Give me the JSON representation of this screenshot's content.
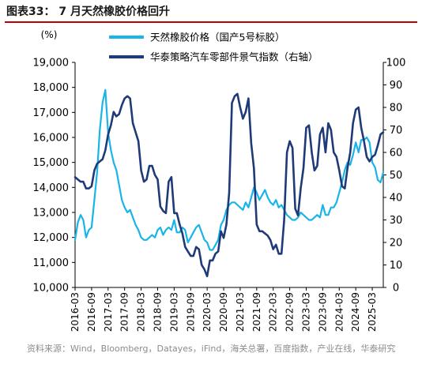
{
  "figure": {
    "title": "图表33： 7 月天然橡胶价格回升",
    "source": "资料来源：Wind，Bloomberg，Datayes，iFind，海关总署，百度指数，产业在线，华泰研究"
  },
  "chart_data": {
    "type": "line",
    "ylabel": "(%)",
    "y_left": {
      "min": 10000,
      "max": 19000,
      "ticks": [
        "10,000",
        "11,000",
        "12,000",
        "13,000",
        "14,000",
        "15,000",
        "16,000",
        "17,000",
        "18,000",
        "19,000"
      ]
    },
    "y_right": {
      "min": 0,
      "max": 100,
      "ticks": [
        "0",
        "10",
        "20",
        "30",
        "40",
        "50",
        "60",
        "70",
        "80",
        "90",
        "100"
      ]
    },
    "x_ticks": [
      "2016-03",
      "2016-09",
      "2017-03",
      "2017-09",
      "2018-03",
      "2018-09",
      "2019-03",
      "2019-09",
      "2020-03",
      "2020-09",
      "2021-03",
      "2021-09",
      "2022-03",
      "2022-09",
      "2023-03",
      "2023-09",
      "2024-03",
      "2024-09",
      "2025-03"
    ],
    "x_start": "2016-03",
    "x_end": "2025-07",
    "grid": false,
    "legend": "top",
    "series": [
      {
        "name": "天然橡胶价格（国产5号标胶）",
        "axis": "left",
        "color": "#19b4e8",
        "points": [
          [
            "2016-03",
            11900
          ],
          [
            "2016-04",
            12600
          ],
          [
            "2016-05",
            12900
          ],
          [
            "2016-06",
            12700
          ],
          [
            "2016-07",
            12000
          ],
          [
            "2016-08",
            12300
          ],
          [
            "2016-09",
            12400
          ],
          [
            "2016-10",
            13500
          ],
          [
            "2016-11",
            14600
          ],
          [
            "2016-12",
            16300
          ],
          [
            "2017-01",
            17400
          ],
          [
            "2017-02",
            17900
          ],
          [
            "2017-03",
            16200
          ],
          [
            "2017-04",
            15500
          ],
          [
            "2017-05",
            15000
          ],
          [
            "2017-06",
            14700
          ],
          [
            "2017-07",
            14100
          ],
          [
            "2017-08",
            13500
          ],
          [
            "2017-09",
            13200
          ],
          [
            "2017-10",
            13000
          ],
          [
            "2017-11",
            13100
          ],
          [
            "2017-12",
            12800
          ],
          [
            "2018-01",
            12500
          ],
          [
            "2018-02",
            12300
          ],
          [
            "2018-03",
            12000
          ],
          [
            "2018-04",
            11900
          ],
          [
            "2018-05",
            11900
          ],
          [
            "2018-06",
            12000
          ],
          [
            "2018-07",
            12100
          ],
          [
            "2018-08",
            12000
          ],
          [
            "2018-09",
            12300
          ],
          [
            "2018-10",
            12400
          ],
          [
            "2018-11",
            12100
          ],
          [
            "2018-12",
            12300
          ],
          [
            "2019-01",
            12400
          ],
          [
            "2019-02",
            12300
          ],
          [
            "2019-03",
            12700
          ],
          [
            "2019-04",
            12200
          ],
          [
            "2019-05",
            12200
          ],
          [
            "2019-06",
            12400
          ],
          [
            "2019-07",
            12300
          ],
          [
            "2019-08",
            11800
          ],
          [
            "2019-09",
            12000
          ],
          [
            "2019-10",
            12200
          ],
          [
            "2019-11",
            12400
          ],
          [
            "2019-12",
            12500
          ],
          [
            "2020-01",
            12200
          ],
          [
            "2020-02",
            11900
          ],
          [
            "2020-03",
            11800
          ],
          [
            "2020-04",
            11500
          ],
          [
            "2020-05",
            11500
          ],
          [
            "2020-06",
            11700
          ],
          [
            "2020-07",
            11900
          ],
          [
            "2020-08",
            12500
          ],
          [
            "2020-09",
            12700
          ],
          [
            "2020-10",
            13100
          ],
          [
            "2020-11",
            13300
          ],
          [
            "2020-12",
            13400
          ],
          [
            "2021-01",
            13400
          ],
          [
            "2021-02",
            13300
          ],
          [
            "2021-03",
            13200
          ],
          [
            "2021-04",
            13100
          ],
          [
            "2021-05",
            13400
          ],
          [
            "2021-06",
            13200
          ],
          [
            "2021-07",
            13600
          ],
          [
            "2021-08",
            14000
          ],
          [
            "2021-09",
            13800
          ],
          [
            "2021-10",
            13500
          ],
          [
            "2021-11",
            13700
          ],
          [
            "2021-12",
            13900
          ],
          [
            "2022-01",
            13600
          ],
          [
            "2022-02",
            13400
          ],
          [
            "2022-03",
            13300
          ],
          [
            "2022-04",
            13500
          ],
          [
            "2022-05",
            13200
          ],
          [
            "2022-06",
            13300
          ],
          [
            "2022-07",
            13100
          ],
          [
            "2022-08",
            12900
          ],
          [
            "2022-09",
            12800
          ],
          [
            "2022-10",
            12700
          ],
          [
            "2022-11",
            12700
          ],
          [
            "2022-12",
            12800
          ],
          [
            "2023-01",
            13000
          ],
          [
            "2023-02",
            12900
          ],
          [
            "2023-03",
            12800
          ],
          [
            "2023-04",
            12700
          ],
          [
            "2023-05",
            12700
          ],
          [
            "2023-06",
            12800
          ],
          [
            "2023-07",
            12900
          ],
          [
            "2023-08",
            12800
          ],
          [
            "2023-09",
            13300
          ],
          [
            "2023-10",
            12900
          ],
          [
            "2023-11",
            12900
          ],
          [
            "2023-12",
            13200
          ],
          [
            "2024-01",
            13200
          ],
          [
            "2024-02",
            13400
          ],
          [
            "2024-03",
            13800
          ],
          [
            "2024-04",
            14200
          ],
          [
            "2024-05",
            14700
          ],
          [
            "2024-06",
            15000
          ],
          [
            "2024-07",
            14900
          ],
          [
            "2024-08",
            15300
          ],
          [
            "2024-09",
            15800
          ],
          [
            "2024-10",
            15400
          ],
          [
            "2024-11",
            15900
          ],
          [
            "2024-12",
            15900
          ],
          [
            "2025-01",
            16000
          ],
          [
            "2025-02",
            15800
          ],
          [
            "2025-03",
            15000
          ],
          [
            "2025-04",
            14800
          ],
          [
            "2025-05",
            14300
          ],
          [
            "2025-06",
            14200
          ],
          [
            "2025-07",
            14600
          ]
        ]
      },
      {
        "name": "华泰策略汽车零部件景气指数（右轴）",
        "axis": "right",
        "color": "#1f3a78",
        "points": [
          [
            "2016-03",
            49
          ],
          [
            "2016-04",
            48
          ],
          [
            "2016-05",
            47
          ],
          [
            "2016-06",
            47
          ],
          [
            "2016-07",
            44
          ],
          [
            "2016-08",
            44
          ],
          [
            "2016-09",
            45
          ],
          [
            "2016-10",
            52
          ],
          [
            "2016-11",
            55
          ],
          [
            "2016-12",
            56
          ],
          [
            "2017-01",
            57
          ],
          [
            "2017-02",
            61
          ],
          [
            "2017-03",
            68
          ],
          [
            "2017-04",
            72
          ],
          [
            "2017-05",
            78
          ],
          [
            "2017-06",
            76
          ],
          [
            "2017-07",
            77
          ],
          [
            "2017-08",
            81
          ],
          [
            "2017-09",
            84
          ],
          [
            "2017-10",
            85
          ],
          [
            "2017-11",
            84
          ],
          [
            "2017-12",
            73
          ],
          [
            "2018-01",
            69
          ],
          [
            "2018-02",
            65
          ],
          [
            "2018-03",
            52
          ],
          [
            "2018-04",
            47
          ],
          [
            "2018-05",
            48
          ],
          [
            "2018-06",
            54
          ],
          [
            "2018-07",
            54
          ],
          [
            "2018-08",
            50
          ],
          [
            "2018-09",
            48
          ],
          [
            "2018-10",
            36
          ],
          [
            "2018-11",
            34
          ],
          [
            "2018-12",
            33
          ],
          [
            "2019-01",
            47
          ],
          [
            "2019-02",
            49
          ],
          [
            "2019-03",
            33
          ],
          [
            "2019-04",
            33
          ],
          [
            "2019-05",
            28
          ],
          [
            "2019-06",
            24
          ],
          [
            "2019-07",
            18
          ],
          [
            "2019-08",
            16
          ],
          [
            "2019-09",
            14
          ],
          [
            "2019-10",
            14
          ],
          [
            "2019-11",
            18
          ],
          [
            "2019-12",
            17
          ],
          [
            "2020-01",
            10
          ],
          [
            "2020-02",
            8
          ],
          [
            "2020-03",
            5
          ],
          [
            "2020-04",
            12
          ],
          [
            "2020-05",
            12
          ],
          [
            "2020-06",
            15
          ],
          [
            "2020-07",
            16
          ],
          [
            "2020-08",
            25
          ],
          [
            "2020-09",
            22
          ],
          [
            "2020-10",
            28
          ],
          [
            "2020-11",
            42
          ],
          [
            "2020-12",
            82
          ],
          [
            "2021-01",
            85
          ],
          [
            "2021-02",
            86
          ],
          [
            "2021-03",
            80
          ],
          [
            "2021-04",
            75
          ],
          [
            "2021-05",
            78
          ],
          [
            "2021-06",
            84
          ],
          [
            "2021-07",
            64
          ],
          [
            "2021-08",
            53
          ],
          [
            "2021-09",
            28
          ],
          [
            "2021-10",
            25
          ],
          [
            "2021-11",
            25
          ],
          [
            "2021-12",
            24
          ],
          [
            "2022-01",
            23
          ],
          [
            "2022-02",
            21
          ],
          [
            "2022-03",
            17
          ],
          [
            "2022-04",
            19
          ],
          [
            "2022-05",
            15
          ],
          [
            "2022-06",
            15
          ],
          [
            "2022-07",
            30
          ],
          [
            "2022-08",
            60
          ],
          [
            "2022-09",
            65
          ],
          [
            "2022-10",
            62
          ],
          [
            "2022-11",
            35
          ],
          [
            "2022-12",
            32
          ],
          [
            "2023-01",
            44
          ],
          [
            "2023-02",
            53
          ],
          [
            "2023-03",
            71
          ],
          [
            "2023-04",
            72
          ],
          [
            "2023-05",
            60
          ],
          [
            "2023-06",
            52
          ],
          [
            "2023-07",
            54
          ],
          [
            "2023-08",
            68
          ],
          [
            "2023-09",
            71
          ],
          [
            "2023-10",
            60
          ],
          [
            "2023-11",
            73
          ],
          [
            "2023-12",
            70
          ],
          [
            "2024-01",
            60
          ],
          [
            "2024-02",
            58
          ],
          [
            "2024-03",
            52
          ],
          [
            "2024-04",
            45
          ],
          [
            "2024-05",
            44
          ],
          [
            "2024-06",
            53
          ],
          [
            "2024-07",
            60
          ],
          [
            "2024-08",
            73
          ],
          [
            "2024-09",
            79
          ],
          [
            "2024-10",
            80
          ],
          [
            "2024-11",
            71
          ],
          [
            "2024-12",
            65
          ],
          [
            "2025-01",
            58
          ],
          [
            "2025-02",
            56
          ],
          [
            "2025-03",
            58
          ],
          [
            "2025-04",
            59
          ],
          [
            "2025-05",
            63
          ],
          [
            "2025-06",
            68
          ],
          [
            "2025-07",
            69
          ]
        ]
      }
    ]
  }
}
